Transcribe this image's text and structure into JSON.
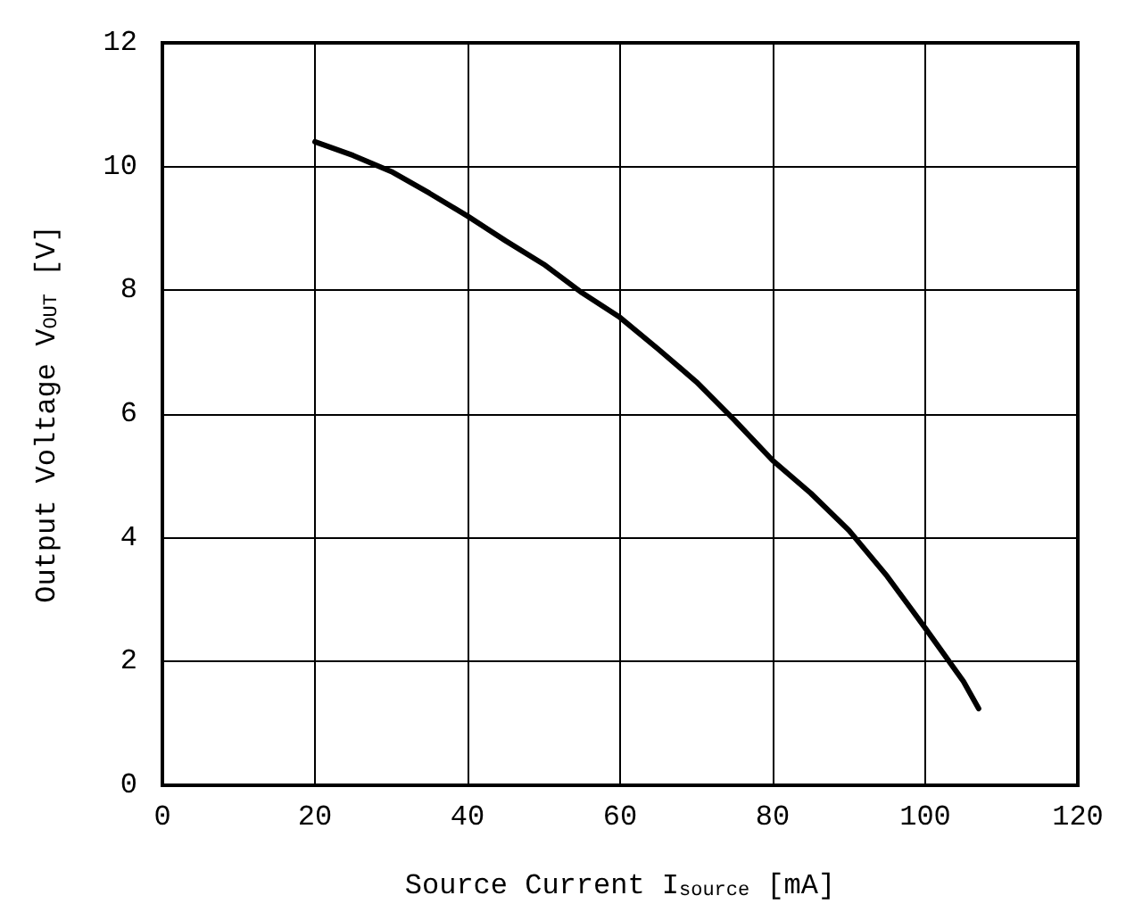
{
  "chart_data": {
    "type": "line",
    "xlabel": "Source Current I$_{source}$ [mA]",
    "ylabel": "Output Voltage V$_{OUT}$ [V]",
    "series": [
      {
        "color": "#000000",
        "x": [
          20,
          25,
          30,
          35,
          40,
          45,
          50,
          55,
          60,
          65,
          70,
          75,
          80,
          85,
          90,
          95,
          100,
          105,
          107
        ],
        "values": [
          10.4,
          10.18,
          9.92,
          9.57,
          9.2,
          8.8,
          8.42,
          7.96,
          7.56,
          7.05,
          6.52,
          5.9,
          5.25,
          4.72,
          4.12,
          3.38,
          2.54,
          1.68,
          1.24
        ]
      }
    ],
    "xlim": [
      0,
      120
    ],
    "xticks": [
      0,
      20,
      40,
      60,
      80,
      100,
      120
    ],
    "ylim": [
      0,
      12
    ],
    "yticks": [
      0,
      2,
      4,
      6,
      8,
      10,
      12
    ],
    "grid": true,
    "marker": "none",
    "line_style": "solid"
  }
}
